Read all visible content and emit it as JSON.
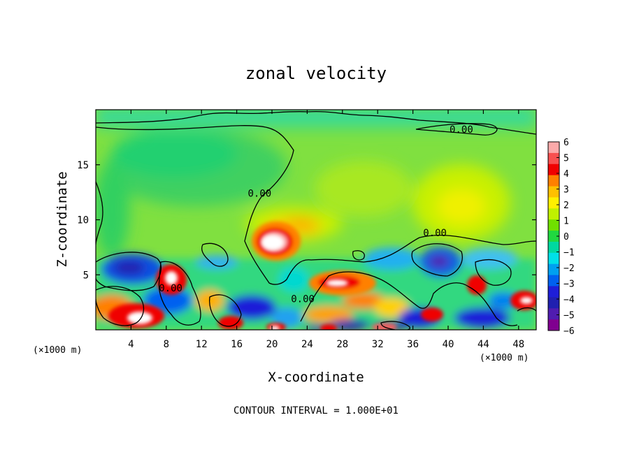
{
  "chart_data": {
    "type": "heatmap",
    "title": "zonal velocity",
    "xlabel": "X-coordinate",
    "ylabel": "Z-coordinate",
    "x_unit_note": "(×1000 m)",
    "x_unit_note_right": "(×1000 m)",
    "xlim": [
      0,
      50
    ],
    "ylim": [
      0,
      20
    ],
    "x_ticks": [
      4,
      8,
      12,
      16,
      20,
      24,
      28,
      32,
      36,
      40,
      44,
      48
    ],
    "y_ticks": [
      5,
      10,
      15
    ],
    "colorbar": {
      "min": -6,
      "max": 6,
      "ticks": [
        "6",
        "5",
        "4",
        "3",
        "2",
        "1",
        "0",
        "−1",
        "−2",
        "−3",
        "−4",
        "−5",
        "−6"
      ],
      "colors": [
        "#fbaaaa",
        "#f85050",
        "#f00000",
        "#ff8000",
        "#ffc000",
        "#fff000",
        "#c0f000",
        "#70e000",
        "#20d840",
        "#00d8a0",
        "#00e0e8",
        "#00a0f0",
        "#0060f0",
        "#1e1ed8",
        "#2020b0",
        "#501cb0",
        "#800090"
      ]
    },
    "contour_label": "0.00",
    "contour_labels": [
      {
        "text": "0.00",
        "x": 41.5,
        "y": 17.9
      },
      {
        "text": "0.00",
        "x": 18.6,
        "y": 12.1
      },
      {
        "text": "0.00",
        "x": 38.5,
        "y": 8.5
      },
      {
        "text": "0.00",
        "x": 8.5,
        "y": 3.5
      },
      {
        "text": "0.00",
        "x": 23.5,
        "y": 2.5
      }
    ],
    "features": [
      {
        "kind": "jet",
        "x": 20,
        "y": 7.8,
        "value": 6
      },
      {
        "kind": "jet",
        "x": 28,
        "y": 4.2,
        "value": 6
      },
      {
        "kind": "jet",
        "x": 5,
        "y": 1.5,
        "value": 6
      },
      {
        "kind": "jet",
        "x": 9,
        "y": 4.5,
        "value": 6
      },
      {
        "kind": "min",
        "x": 4,
        "y": 5.2,
        "value": -5
      },
      {
        "kind": "min",
        "x": 38,
        "y": 6,
        "value": -5
      },
      {
        "kind": "max",
        "x": 42,
        "y": 11.5,
        "value": 2
      }
    ],
    "footer": "CONTOUR INTERVAL = 1.000E+01"
  }
}
